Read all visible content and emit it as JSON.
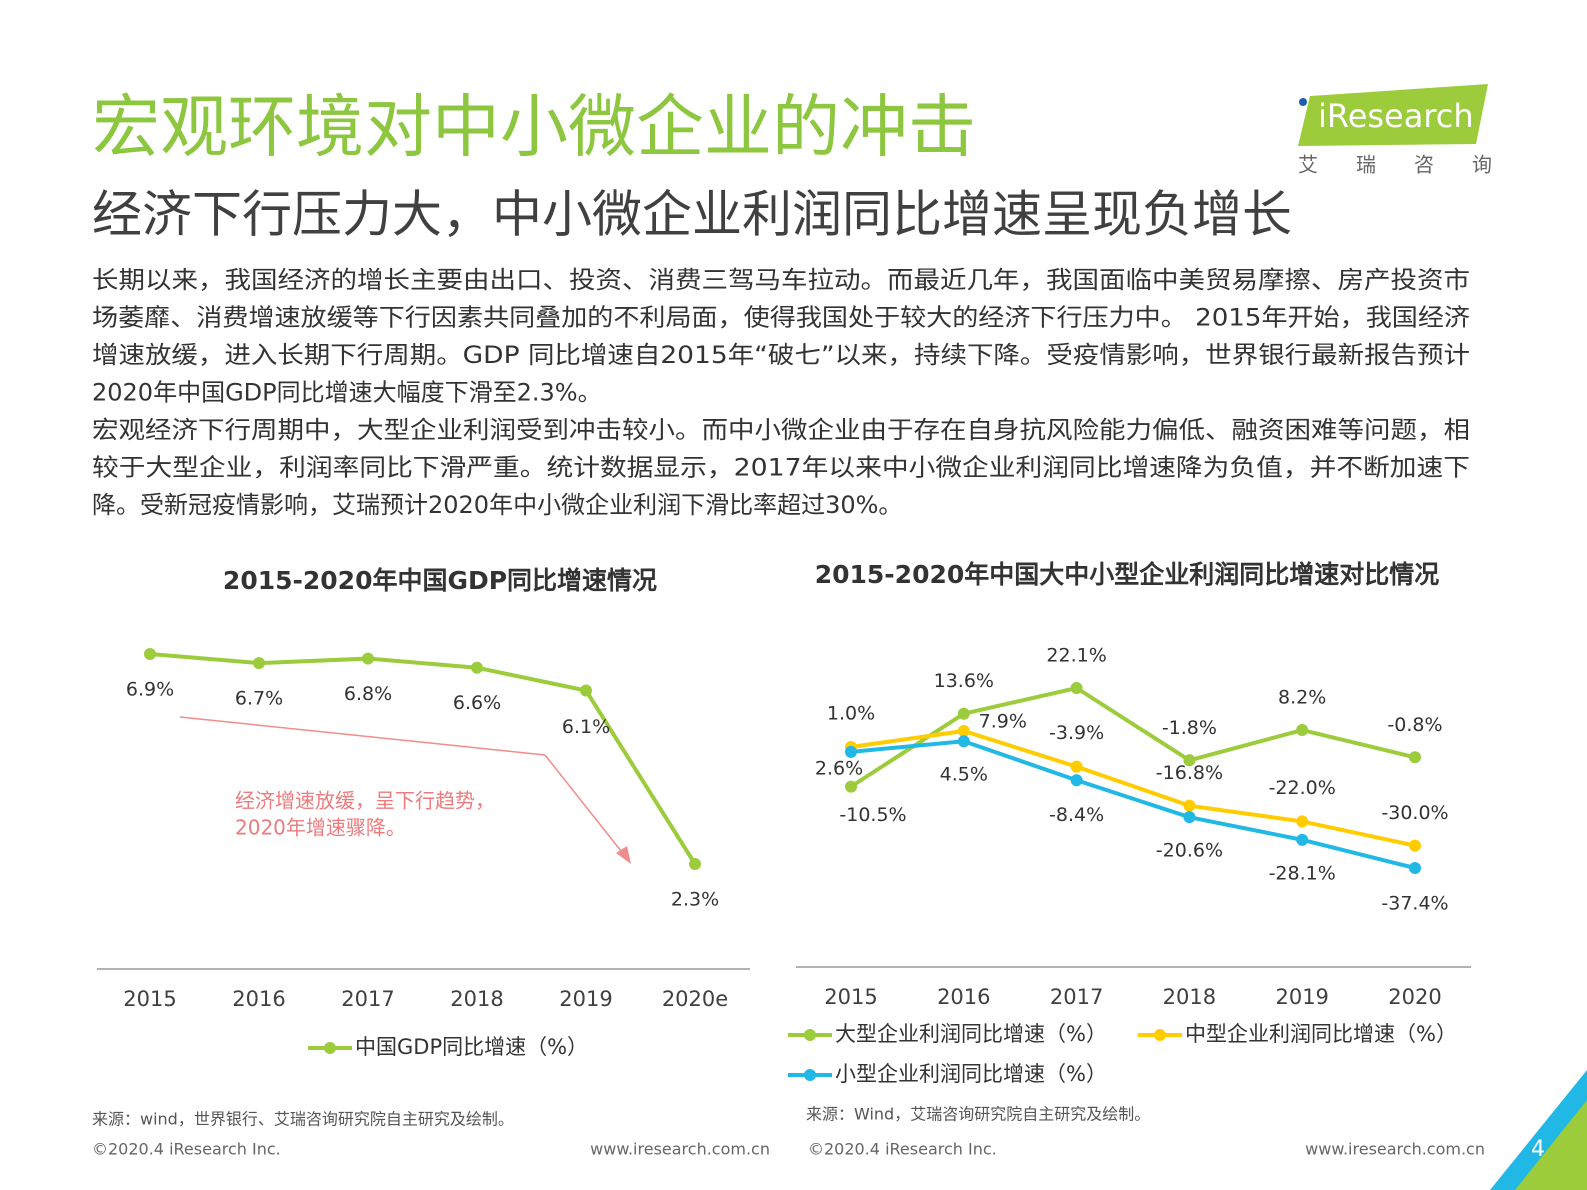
{
  "page": {
    "title": "宏观环境对中小微企业的冲击",
    "subtitle": "经济下行压力大，中小微企业利润同比增速呈现负增长",
    "logo": {
      "name": "iResearch",
      "cn": "艾瑞咨询"
    },
    "body_lines": [
      "长期以来，我国经济的增长主要由出口、投资、消费三驾马车拉动。而最近几年，我国面临中美贸易摩擦、房产投资市",
      "场萎靡、消费增速放缓等下行因素共同叠加的不利局面，使得我国处于较大的经济下行压力中。 2015年开始，我国经济",
      "增速放缓，进入长期下行周期。GDP 同比增速自2015年“破七”以来，持续下降。受疫情影响，世界银行最新报告预计",
      "2020年中国GDP同比增速大幅度下滑至2.3%。",
      "宏观经济下行周期中，大型企业利润受到冲击较小。而中小微企业由于存在自身抗风险能力偏低、融资困难等问题，相",
      "较于大型企业，利润率同比下滑严重。统计数据显示，2017年以来中小微企业利润同比增速降为负值，并不断加速下",
      "降。受新冠疫情影响，艾瑞预计2020年中小微企业利润下滑比率超过30%。"
    ],
    "copyright": "©2020.4 iResearch Inc.",
    "website": "www.iresearch.com.cn",
    "page_number": "4"
  },
  "chart_data": [
    {
      "type": "line",
      "title": "2015-2020年中国GDP同比增速情况",
      "categories": [
        "2015",
        "2016",
        "2017",
        "2018",
        "2019",
        "2020e"
      ],
      "series": [
        {
          "name": "中国GDP同比增速（%）",
          "color": "#9ccc3c",
          "values": [
            6.9,
            6.7,
            6.8,
            6.6,
            6.1,
            2.3
          ],
          "value_labels": [
            "6.9%",
            "6.7%",
            "6.8%",
            "6.6%",
            "6.1%",
            "2.3%"
          ]
        }
      ],
      "annotations": [
        "经济增速放缓，呈下行趋势，",
        "2020年增速骤降。"
      ],
      "source": "来源：wind，世界银行、艾瑞咨询研究院自主研究及绘制。"
    },
    {
      "type": "line",
      "title": "2015-2020年中国大中小型企业利润同比增速对比情况",
      "categories": [
        "2015",
        "2016",
        "2017",
        "2018",
        "2019",
        "2020"
      ],
      "series": [
        {
          "name": "大型企业利润同比增速（%）",
          "color": "#9ccc3c",
          "values": [
            -10.5,
            13.6,
            22.1,
            -1.8,
            8.2,
            -0.8
          ],
          "value_labels": [
            "-10.5%",
            "13.6%",
            "22.1%",
            "-1.8%",
            "8.2%",
            "-0.8%"
          ]
        },
        {
          "name": "中型企业利润同比增速（%）",
          "color": "#ffcc00",
          "values": [
            2.6,
            7.9,
            -3.9,
            -16.8,
            -22.0,
            -30.0
          ],
          "value_labels": [
            "2.6%",
            "7.9%",
            "-3.9%",
            "-16.8%",
            "-22.0%",
            "-30.0%"
          ]
        },
        {
          "name": "小型企业利润同比增速（%）",
          "color": "#22b8e6",
          "values": [
            1.0,
            4.5,
            -8.4,
            -20.6,
            -28.1,
            -37.4
          ],
          "value_labels": [
            "1.0%",
            "4.5%",
            "-8.4%",
            "-20.6%",
            "-28.1%",
            "-37.4%"
          ]
        }
      ],
      "source": "来源：Wind，艾瑞咨询研究院自主研究及绘制。"
    }
  ]
}
